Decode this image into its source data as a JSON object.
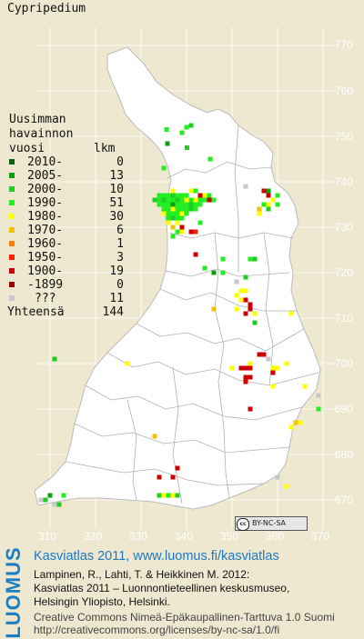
{
  "species": "Cypripedium",
  "legend": {
    "title_lines": [
      "Uusimman",
      "havainnon",
      "vuosi"
    ],
    "count_header": "lkm",
    "rows": [
      {
        "label": "2010-",
        "count": "0",
        "color": "#0a5f0a"
      },
      {
        "label": "2005-",
        "count": "13",
        "color": "#0aa00a"
      },
      {
        "label": "2000-",
        "count": "10",
        "color": "#22cc22"
      },
      {
        "label": "1990-",
        "count": "51",
        "color": "#22ee22"
      },
      {
        "label": "1980-",
        "count": "30",
        "color": "#ffff00"
      },
      {
        "label": "1970-",
        "count": "6",
        "color": "#f2c200"
      },
      {
        "label": "1960-",
        "count": "1",
        "color": "#ff8000"
      },
      {
        "label": "1950-",
        "count": "3",
        "color": "#ff2000"
      },
      {
        "label": "1900-",
        "count": "19",
        "color": "#cc0000"
      },
      {
        "label": "-1899",
        "count": "0",
        "color": "#990000"
      },
      {
        "label": "???",
        "count": "11",
        "color": "#c8c8c8"
      }
    ],
    "total_label": "Yhteensä",
    "total_count": "144"
  },
  "axes": {
    "y_ticks": [
      "770",
      "760",
      "750",
      "740",
      "730",
      "720",
      "710",
      "700",
      "690",
      "680",
      "670"
    ],
    "x_ticks": [
      "310",
      "320",
      "330",
      "340",
      "350",
      "360",
      "370"
    ]
  },
  "map_points": [
    {
      "e": 340.0,
      "n": 752.0,
      "c": 3
    },
    {
      "e": 341.0,
      "n": 752.4,
      "c": 2
    },
    {
      "e": 335.6,
      "n": 751.5,
      "c": 3
    },
    {
      "e": 339.0,
      "n": 750.8,
      "c": 3
    },
    {
      "e": 335.8,
      "n": 748.4,
      "c": 1
    },
    {
      "e": 340.1,
      "n": 747.5,
      "c": 2
    },
    {
      "e": 345.2,
      "n": 745.0,
      "c": 3
    },
    {
      "e": 335.0,
      "n": 743.0,
      "c": 3
    },
    {
      "e": 334.0,
      "n": 737.0,
      "c": 3
    },
    {
      "e": 335.0,
      "n": 737.0,
      "c": 3
    },
    {
      "e": 336.0,
      "n": 737.0,
      "c": 3
    },
    {
      "e": 337.0,
      "n": 737.0,
      "c": 2
    },
    {
      "e": 338.0,
      "n": 737.0,
      "c": 3
    },
    {
      "e": 339.0,
      "n": 737.0,
      "c": 3
    },
    {
      "e": 340.0,
      "n": 737.0,
      "c": 3
    },
    {
      "e": 341.0,
      "n": 738.0,
      "c": 4
    },
    {
      "e": 342.0,
      "n": 738.0,
      "c": 3
    },
    {
      "e": 343.0,
      "n": 737.0,
      "c": 8
    },
    {
      "e": 344.0,
      "n": 737.0,
      "c": 4
    },
    {
      "e": 345.0,
      "n": 737.0,
      "c": 3
    },
    {
      "e": 346.0,
      "n": 736.0,
      "c": 3
    },
    {
      "e": 337.0,
      "n": 738.0,
      "c": 4
    },
    {
      "e": 333.0,
      "n": 736.0,
      "c": 2
    },
    {
      "e": 334.0,
      "n": 736.0,
      "c": 3
    },
    {
      "e": 335.0,
      "n": 736.0,
      "c": 2
    },
    {
      "e": 336.0,
      "n": 736.0,
      "c": 3
    },
    {
      "e": 337.0,
      "n": 736.0,
      "c": 3
    },
    {
      "e": 338.0,
      "n": 736.0,
      "c": 2
    },
    {
      "e": 339.0,
      "n": 736.0,
      "c": 3
    },
    {
      "e": 340.0,
      "n": 736.0,
      "c": 4
    },
    {
      "e": 341.0,
      "n": 736.0,
      "c": 3
    },
    {
      "e": 342.0,
      "n": 736.0,
      "c": 4
    },
    {
      "e": 343.0,
      "n": 736.0,
      "c": 3
    },
    {
      "e": 344.0,
      "n": 736.0,
      "c": 3
    },
    {
      "e": 345.0,
      "n": 736.0,
      "c": 8
    },
    {
      "e": 334.0,
      "n": 735.0,
      "c": 3
    },
    {
      "e": 335.0,
      "n": 735.0,
      "c": 3
    },
    {
      "e": 336.0,
      "n": 735.0,
      "c": 3
    },
    {
      "e": 337.0,
      "n": 735.0,
      "c": 1
    },
    {
      "e": 338.0,
      "n": 735.0,
      "c": 3
    },
    {
      "e": 339.0,
      "n": 735.0,
      "c": 3
    },
    {
      "e": 340.0,
      "n": 735.0,
      "c": 3
    },
    {
      "e": 341.0,
      "n": 735.0,
      "c": 2
    },
    {
      "e": 342.0,
      "n": 735.0,
      "c": 3
    },
    {
      "e": 343.0,
      "n": 735.0,
      "c": 3
    },
    {
      "e": 335.0,
      "n": 734.0,
      "c": 3
    },
    {
      "e": 336.0,
      "n": 734.0,
      "c": 3
    },
    {
      "e": 337.0,
      "n": 734.0,
      "c": 4
    },
    {
      "e": 338.0,
      "n": 734.0,
      "c": 3
    },
    {
      "e": 339.0,
      "n": 734.0,
      "c": 3
    },
    {
      "e": 340.0,
      "n": 734.0,
      "c": 3
    },
    {
      "e": 341.0,
      "n": 734.0,
      "c": 2
    },
    {
      "e": 342.0,
      "n": 734.0,
      "c": 3
    },
    {
      "e": 335.0,
      "n": 733.0,
      "c": 4
    },
    {
      "e": 336.0,
      "n": 733.0,
      "c": 3
    },
    {
      "e": 337.0,
      "n": 733.0,
      "c": 3
    },
    {
      "e": 338.0,
      "n": 733.0,
      "c": 3
    },
    {
      "e": 339.0,
      "n": 733.0,
      "c": 4
    },
    {
      "e": 340.0,
      "n": 733.0,
      "c": 3
    },
    {
      "e": 336.0,
      "n": 732.0,
      "c": 3
    },
    {
      "e": 337.0,
      "n": 732.0,
      "c": 2
    },
    {
      "e": 338.0,
      "n": 732.0,
      "c": 3
    },
    {
      "e": 339.0,
      "n": 732.0,
      "c": 3
    },
    {
      "e": 336.0,
      "n": 731.0,
      "c": 4
    },
    {
      "e": 338.0,
      "n": 731.0,
      "c": 4
    },
    {
      "e": 337.0,
      "n": 730.0,
      "c": 5
    },
    {
      "e": 339.0,
      "n": 730.0,
      "c": 8
    },
    {
      "e": 343.0,
      "n": 731.0,
      "c": 3
    },
    {
      "e": 337.0,
      "n": 728.0,
      "c": 3
    },
    {
      "e": 339.0,
      "n": 729.0,
      "c": 4
    },
    {
      "e": 338.0,
      "n": 729.0,
      "c": 3
    },
    {
      "e": 341.0,
      "n": 729.0,
      "c": 8
    },
    {
      "e": 342.0,
      "n": 729.0,
      "c": 7
    },
    {
      "e": 353.0,
      "n": 739.0,
      "c": 10
    },
    {
      "e": 357.0,
      "n": 738.0,
      "c": 8
    },
    {
      "e": 358.0,
      "n": 738.0,
      "c": 1
    },
    {
      "e": 358.0,
      "n": 737.0,
      "c": 8
    },
    {
      "e": 360.0,
      "n": 737.0,
      "c": 3
    },
    {
      "e": 359.0,
      "n": 736.0,
      "c": 4
    },
    {
      "e": 357.0,
      "n": 735.0,
      "c": 3
    },
    {
      "e": 358.0,
      "n": 735.0,
      "c": 4
    },
    {
      "e": 360.0,
      "n": 735.0,
      "c": 3
    },
    {
      "e": 356.0,
      "n": 734.0,
      "c": 5
    },
    {
      "e": 358.0,
      "n": 734.0,
      "c": 2
    },
    {
      "e": 356.0,
      "n": 733.0,
      "c": 4
    },
    {
      "e": 348.0,
      "n": 723.0,
      "c": 3
    },
    {
      "e": 342.0,
      "n": 724.0,
      "c": 8
    },
    {
      "e": 344.0,
      "n": 721.0,
      "c": 3
    },
    {
      "e": 346.0,
      "n": 720.0,
      "c": 1
    },
    {
      "e": 348.0,
      "n": 720.0,
      "c": 3
    },
    {
      "e": 353.0,
      "n": 719.0,
      "c": 2
    },
    {
      "e": 351.0,
      "n": 718.0,
      "c": 10
    },
    {
      "e": 354.0,
      "n": 723.0,
      "c": 3
    },
    {
      "e": 355.0,
      "n": 723.0,
      "c": 2
    },
    {
      "e": 352.0,
      "n": 716.0,
      "c": 4
    },
    {
      "e": 353.0,
      "n": 716.0,
      "c": 4
    },
    {
      "e": 351.0,
      "n": 715.0,
      "c": 4
    },
    {
      "e": 352.0,
      "n": 714.0,
      "c": 4
    },
    {
      "e": 353.0,
      "n": 714.0,
      "c": 8
    },
    {
      "e": 354.0,
      "n": 713.0,
      "c": 8
    },
    {
      "e": 351.0,
      "n": 712.0,
      "c": 4
    },
    {
      "e": 354.0,
      "n": 712.0,
      "c": 8
    },
    {
      "e": 353.0,
      "n": 711.0,
      "c": 8
    },
    {
      "e": 355.0,
      "n": 711.0,
      "c": 4
    },
    {
      "e": 346.0,
      "n": 712.0,
      "c": 5
    },
    {
      "e": 355.0,
      "n": 709.0,
      "c": 2
    },
    {
      "e": 363.0,
      "n": 711.0,
      "c": 4
    },
    {
      "e": 311.0,
      "n": 701.0,
      "c": 2
    },
    {
      "e": 327.0,
      "n": 700.0,
      "c": 4
    },
    {
      "e": 356.0,
      "n": 702.0,
      "c": 8
    },
    {
      "e": 357.0,
      "n": 702.0,
      "c": 8
    },
    {
      "e": 358.0,
      "n": 701.0,
      "c": 10
    },
    {
      "e": 354.0,
      "n": 700.0,
      "c": 4
    },
    {
      "e": 350.0,
      "n": 699.0,
      "c": 4
    },
    {
      "e": 352.0,
      "n": 699.0,
      "c": 8
    },
    {
      "e": 353.0,
      "n": 699.0,
      "c": 8
    },
    {
      "e": 354.0,
      "n": 699.0,
      "c": 8
    },
    {
      "e": 359.0,
      "n": 698.0,
      "c": 8
    },
    {
      "e": 360.0,
      "n": 699.0,
      "c": 4
    },
    {
      "e": 362.0,
      "n": 700.0,
      "c": 4
    },
    {
      "e": 353.0,
      "n": 697.0,
      "c": 8
    },
    {
      "e": 354.0,
      "n": 697.0,
      "c": 8
    },
    {
      "e": 353.0,
      "n": 696.0,
      "c": 8
    },
    {
      "e": 366.0,
      "n": 695.0,
      "c": 4
    },
    {
      "e": 359.0,
      "n": 699.0,
      "c": 4
    },
    {
      "e": 354.0,
      "n": 690.0,
      "c": 8
    },
    {
      "e": 359.0,
      "n": 695.0,
      "c": 4
    },
    {
      "e": 369.0,
      "n": 693.0,
      "c": 10
    },
    {
      "e": 369.0,
      "n": 690.0,
      "c": 3
    },
    {
      "e": 364.0,
      "n": 687.0,
      "c": 5
    },
    {
      "e": 365.0,
      "n": 687.0,
      "c": 4
    },
    {
      "e": 363.0,
      "n": 686.0,
      "c": 4
    },
    {
      "e": 362.0,
      "n": 673.0,
      "c": 4
    },
    {
      "e": 360.0,
      "n": 675.0,
      "c": 10
    },
    {
      "e": 333.0,
      "n": 684.0,
      "c": 5
    },
    {
      "e": 334.0,
      "n": 675.0,
      "c": 8
    },
    {
      "e": 337.0,
      "n": 675.0,
      "c": 8
    },
    {
      "e": 338.0,
      "n": 677.0,
      "c": 8
    },
    {
      "e": 334.0,
      "n": 671.0,
      "c": 2
    },
    {
      "e": 335.0,
      "n": 671.0,
      "c": 4
    },
    {
      "e": 336.0,
      "n": 671.0,
      "c": 3
    },
    {
      "e": 337.0,
      "n": 671.0,
      "c": 4
    },
    {
      "e": 338.0,
      "n": 671.0,
      "c": 2
    },
    {
      "e": 308.0,
      "n": 670.0,
      "c": 10
    },
    {
      "e": 309.0,
      "n": 670.0,
      "c": 2
    },
    {
      "e": 310.0,
      "n": 671.0,
      "c": 1
    },
    {
      "e": 312.0,
      "n": 669.0,
      "c": 2
    },
    {
      "e": 313.0,
      "n": 671.0,
      "c": 3
    },
    {
      "e": 311.0,
      "n": 669.0,
      "c": 10
    }
  ],
  "footer": {
    "cc_badge": "BY-NC-SA",
    "logo": "LUOMUS",
    "title": "Kasviatlas 2011, www.luomus.fi/kasviatlas",
    "citation_1": "Lampinen, R., Lahti, T. & Heikkinen M. 2012:",
    "citation_2": "Kasviatlas 2011 – Luonnontieteellinen keskusmuseo,",
    "citation_3": "Helsingin Yliopisto, Helsinki.",
    "license_1": "Creative Commons Nimeä-Epäkaupallinen-Tarttuva 1.0 Suomi",
    "license_2": "http://creativecommons.org/licenses/by-nc-sa/1.0/fi"
  }
}
